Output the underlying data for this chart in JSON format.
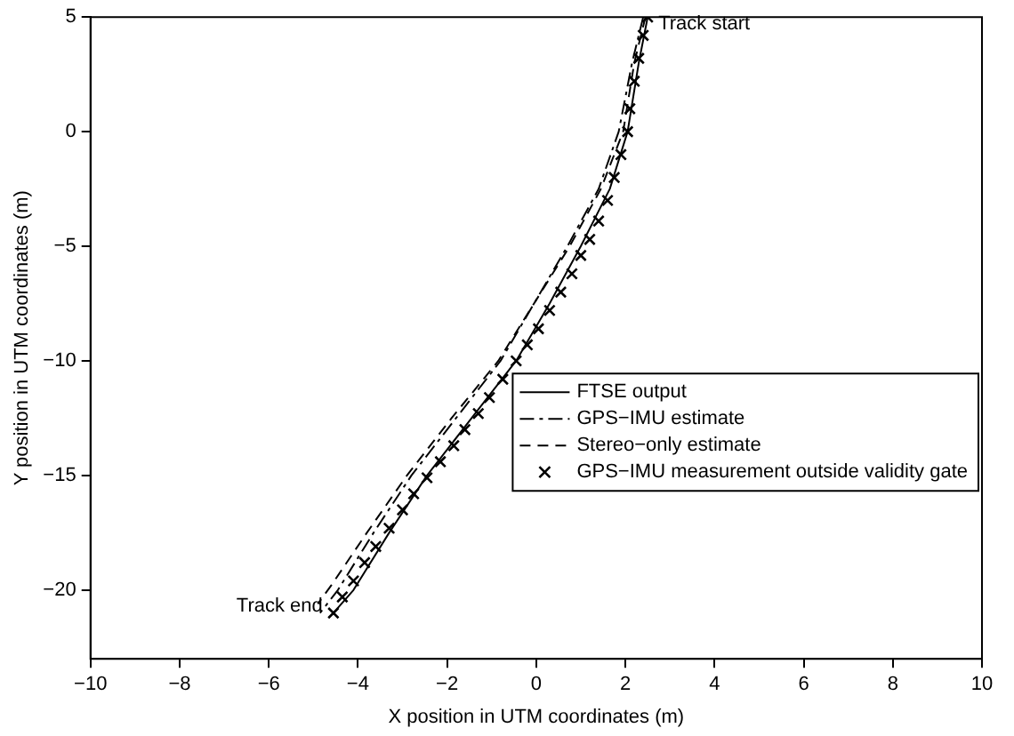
{
  "chart_data": {
    "type": "line",
    "xlabel": "X position in UTM coordinates (m)",
    "ylabel": "Y position in UTM coordinates (m)",
    "xlim": [
      -10,
      10
    ],
    "xticks": [
      -10,
      -8,
      -6,
      -4,
      -2,
      0,
      2,
      4,
      6,
      8,
      10
    ],
    "ylim": [
      -23,
      5
    ],
    "yticks": [
      -20,
      -15,
      -10,
      -5,
      0,
      5
    ],
    "legend": "right",
    "grid": false,
    "series": [
      {
        "name": "FTSE output",
        "line_style": "solid",
        "marker": "none",
        "color": "#000000",
        "x": [
          2.5,
          2.3,
          2.05,
          1.65,
          1.0,
          0.3,
          -0.45,
          -1.45,
          -2.45,
          -3.3,
          -4.1,
          -4.55
        ],
        "values": [
          5,
          3,
          0,
          -2.5,
          -5,
          -7.5,
          -10,
          -12.5,
          -15,
          -17.5,
          -20,
          -21
        ]
      },
      {
        "name": "GPS−IMU estimate",
        "line_style": "dashdot",
        "marker": "none",
        "color": "#000000",
        "x": [
          2.4,
          2.15,
          1.85,
          1.4,
          0.7,
          -0.05,
          -0.8,
          -1.8,
          -2.8,
          -3.65,
          -4.45,
          -4.85
        ],
        "values": [
          5,
          3,
          0,
          -2.5,
          -5,
          -7.5,
          -10,
          -12.5,
          -15,
          -17.5,
          -20,
          -21
        ]
      },
      {
        "name": "Stereo−only estimate",
        "line_style": "dashed",
        "marker": "none",
        "color": "#000000",
        "x": [
          2.45,
          2.2,
          1.95,
          1.45,
          0.75,
          -0.05,
          -0.85,
          -1.9,
          -2.9,
          -3.8,
          -4.6,
          -4.9
        ],
        "values": [
          5,
          3,
          0,
          -2.5,
          -5,
          -7.5,
          -10,
          -12.5,
          -15,
          -17.5,
          -19.8,
          -20.6
        ]
      },
      {
        "name": "GPS−IMU measurement outside validity gate",
        "type": "scatter",
        "marker": "cross",
        "color": "#000000",
        "x": [
          2.5,
          2.4,
          2.3,
          2.2,
          2.1,
          2.05,
          1.9,
          1.75,
          1.6,
          1.4,
          1.2,
          1.0,
          0.8,
          0.55,
          0.3,
          0.05,
          -0.2,
          -0.45,
          -0.75,
          -1.05,
          -1.3,
          -1.6,
          -1.85,
          -2.15,
          -2.45,
          -2.75,
          -3.0,
          -3.3,
          -3.6,
          -3.85,
          -4.1,
          -4.35,
          -4.55
        ],
        "values": [
          5,
          4.2,
          3.2,
          2.2,
          1.0,
          0,
          -1,
          -2,
          -3,
          -3.9,
          -4.7,
          -5.4,
          -6.2,
          -7.0,
          -7.8,
          -8.6,
          -9.3,
          -10,
          -10.8,
          -11.6,
          -12.3,
          -13,
          -13.7,
          -14.4,
          -15.1,
          -15.8,
          -16.5,
          -17.3,
          -18.1,
          -18.8,
          -19.6,
          -20.3,
          -21
        ]
      }
    ],
    "annotations": [
      {
        "text": "Track start",
        "x": 2.5,
        "y": 5
      },
      {
        "text": "Track end",
        "x": -4.55,
        "y": -21
      }
    ]
  }
}
